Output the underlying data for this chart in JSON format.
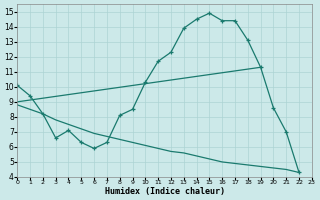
{
  "xlabel": "Humidex (Indice chaleur)",
  "bg_color": "#cce9e9",
  "grid_color": "#add4d4",
  "line_color": "#1a7a6e",
  "xlim": [
    0,
    23
  ],
  "ylim": [
    4,
    15.5
  ],
  "xticks": [
    0,
    1,
    2,
    3,
    4,
    5,
    6,
    7,
    8,
    9,
    10,
    11,
    12,
    13,
    14,
    15,
    16,
    17,
    18,
    19,
    20,
    21,
    22,
    23
  ],
  "yticks": [
    4,
    5,
    6,
    7,
    8,
    9,
    10,
    11,
    12,
    13,
    14,
    15
  ],
  "curve1_x": [
    0,
    1,
    2,
    3,
    4,
    5,
    6,
    7,
    8,
    9,
    10,
    11,
    12,
    13,
    14,
    15,
    16,
    17,
    18,
    19,
    20,
    21,
    22
  ],
  "curve1_y": [
    10.1,
    9.4,
    8.2,
    6.6,
    7.1,
    6.3,
    5.9,
    6.3,
    8.1,
    8.5,
    10.3,
    11.7,
    12.3,
    13.9,
    14.5,
    14.9,
    14.4,
    14.4,
    13.1,
    11.3,
    8.6,
    7.0,
    4.3
  ],
  "curve2_x": [
    0,
    19
  ],
  "curve2_y": [
    9.0,
    11.3
  ],
  "curve3_x": [
    0,
    1,
    2,
    3,
    4,
    5,
    6,
    7,
    8,
    9,
    10,
    11,
    12,
    13,
    14,
    15,
    16,
    17,
    18,
    19,
    20,
    21,
    22
  ],
  "curve3_y": [
    8.8,
    8.5,
    8.2,
    7.8,
    7.5,
    7.2,
    6.9,
    6.7,
    6.5,
    6.3,
    6.1,
    5.9,
    5.7,
    5.6,
    5.4,
    5.2,
    5.0,
    4.9,
    4.8,
    4.7,
    4.6,
    4.5,
    4.3
  ]
}
